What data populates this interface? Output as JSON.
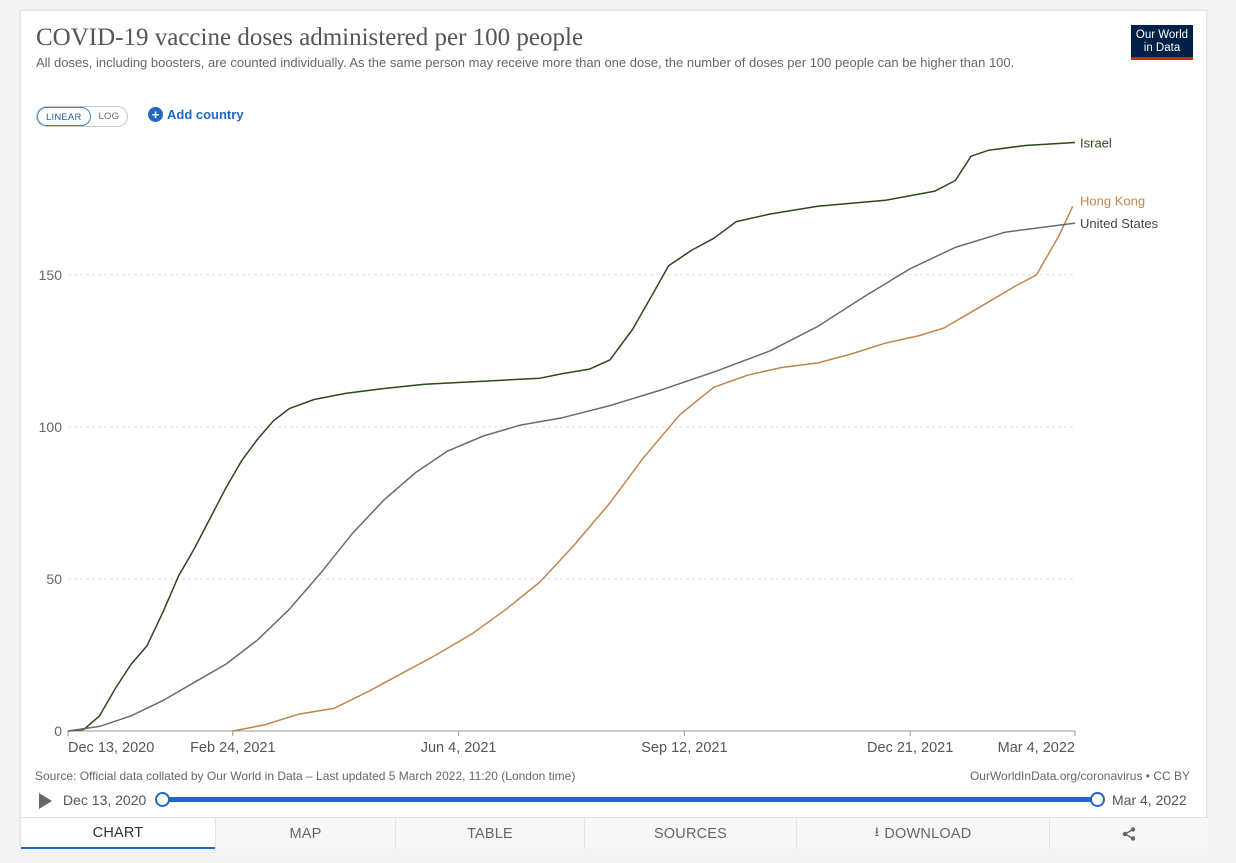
{
  "header": {
    "title": "COVID-19 vaccine doses administered per 100 people",
    "subtitle": "All doses, including boosters, are counted individually. As the same person may receive more than one dose, the number of doses per 100 people can be higher than 100.",
    "logo_line1": "Our World",
    "logo_line2": "in Data"
  },
  "controls": {
    "linear_label": "LINEAR",
    "log_label": "LOG",
    "add_country_label": "Add country",
    "scale_selected": "linear"
  },
  "chart_data": {
    "type": "line",
    "title": "COVID-19 vaccine doses administered per 100 people",
    "ylim": [
      0,
      193
    ],
    "x_tick_labels": [
      "Dec 13, 2020",
      "Feb 24, 2021",
      "Jun 4, 2021",
      "Sep 12, 2021",
      "Dec 21, 2021",
      "Mar 4, 2022"
    ],
    "x_tick_dates": [
      "2020-12-13",
      "2021-02-24",
      "2021-06-04",
      "2021-09-12",
      "2021-12-21",
      "2022-03-04"
    ],
    "x_range": [
      "2020-12-13",
      "2022-03-04"
    ],
    "y_ticks": [
      0,
      50,
      100,
      150
    ],
    "grid": "horizontal dashed",
    "legend": "line end labels",
    "series": [
      {
        "name": "Israel",
        "color": "#2b4a1b",
        "points": [
          [
            "2020-12-13",
            0
          ],
          [
            "2020-12-20",
            0.5
          ],
          [
            "2020-12-27",
            5
          ],
          [
            "2021-01-03",
            14
          ],
          [
            "2021-01-10",
            22
          ],
          [
            "2021-01-17",
            28
          ],
          [
            "2021-01-24",
            39
          ],
          [
            "2021-01-31",
            51
          ],
          [
            "2021-02-07",
            60
          ],
          [
            "2021-02-14",
            70
          ],
          [
            "2021-02-21",
            80
          ],
          [
            "2021-02-28",
            89
          ],
          [
            "2021-03-07",
            96
          ],
          [
            "2021-03-14",
            102
          ],
          [
            "2021-03-21",
            106
          ],
          [
            "2021-04-01",
            109
          ],
          [
            "2021-04-15",
            111
          ],
          [
            "2021-05-01",
            112.5
          ],
          [
            "2021-05-20",
            114
          ],
          [
            "2021-06-15",
            115
          ],
          [
            "2021-07-10",
            116
          ],
          [
            "2021-07-20",
            117.5
          ],
          [
            "2021-08-01",
            119
          ],
          [
            "2021-08-10",
            122
          ],
          [
            "2021-08-20",
            132
          ],
          [
            "2021-08-30",
            145
          ],
          [
            "2021-09-05",
            153
          ],
          [
            "2021-09-15",
            158
          ],
          [
            "2021-09-25",
            162
          ],
          [
            "2021-10-05",
            167.5
          ],
          [
            "2021-10-20",
            170
          ],
          [
            "2021-11-10",
            172.5
          ],
          [
            "2021-12-10",
            174.5
          ],
          [
            "2022-01-01",
            177.5
          ],
          [
            "2022-01-10",
            181
          ],
          [
            "2022-01-17",
            189
          ],
          [
            "2022-01-25",
            191
          ],
          [
            "2022-02-10",
            192.5
          ],
          [
            "2022-03-04",
            193.5
          ]
        ]
      },
      {
        "name": "Hong Kong",
        "color": "#c0854d",
        "points": [
          [
            "2021-02-24",
            0
          ],
          [
            "2021-03-10",
            2
          ],
          [
            "2021-03-25",
            5.5
          ],
          [
            "2021-04-10",
            7.5
          ],
          [
            "2021-04-25",
            13
          ],
          [
            "2021-05-10",
            19
          ],
          [
            "2021-05-25",
            25
          ],
          [
            "2021-06-10",
            32
          ],
          [
            "2021-06-25",
            40
          ],
          [
            "2021-07-10",
            49
          ],
          [
            "2021-07-25",
            61
          ],
          [
            "2021-08-10",
            75
          ],
          [
            "2021-08-25",
            90
          ],
          [
            "2021-09-10",
            104
          ],
          [
            "2021-09-25",
            113
          ],
          [
            "2021-10-10",
            117
          ],
          [
            "2021-10-25",
            119.5
          ],
          [
            "2021-11-10",
            121
          ],
          [
            "2021-11-25",
            124
          ],
          [
            "2021-12-10",
            127.5
          ],
          [
            "2021-12-25",
            130
          ],
          [
            "2022-01-05",
            132.5
          ],
          [
            "2022-01-20",
            139
          ],
          [
            "2022-02-05",
            146
          ],
          [
            "2022-02-15",
            150
          ],
          [
            "2022-02-25",
            163
          ],
          [
            "2022-03-03",
            172.5
          ]
        ]
      },
      {
        "name": "United States",
        "color": "#6b6b6b",
        "points": [
          [
            "2020-12-13",
            0
          ],
          [
            "2020-12-27",
            1.5
          ],
          [
            "2021-01-10",
            5
          ],
          [
            "2021-01-24",
            10
          ],
          [
            "2021-02-07",
            16
          ],
          [
            "2021-02-21",
            22
          ],
          [
            "2021-03-07",
            30
          ],
          [
            "2021-03-21",
            40
          ],
          [
            "2021-04-04",
            52
          ],
          [
            "2021-04-18",
            65
          ],
          [
            "2021-05-02",
            76
          ],
          [
            "2021-05-16",
            85
          ],
          [
            "2021-05-30",
            92
          ],
          [
            "2021-06-15",
            97
          ],
          [
            "2021-07-01",
            100.5
          ],
          [
            "2021-07-20",
            103
          ],
          [
            "2021-08-10",
            107
          ],
          [
            "2021-09-01",
            112
          ],
          [
            "2021-09-25",
            118
          ],
          [
            "2021-10-20",
            125
          ],
          [
            "2021-11-10",
            133
          ],
          [
            "2021-12-01",
            143
          ],
          [
            "2021-12-21",
            152
          ],
          [
            "2022-01-10",
            159
          ],
          [
            "2022-02-01",
            164
          ],
          [
            "2022-03-04",
            167
          ]
        ]
      }
    ]
  },
  "footer": {
    "source": "Source: Official data collated by Our World in Data – Last updated 5 March 2022, 11:20 (London time)",
    "source_right": "OurWorldInData.org/coronavirus • CC BY",
    "timeline_start": "Dec 13, 2020",
    "timeline_end": "Mar 4, 2022",
    "timeline_start_pos": 0,
    "timeline_end_pos": 1
  },
  "tabs": [
    {
      "label": "CHART",
      "active": true
    },
    {
      "label": "MAP",
      "active": false
    },
    {
      "label": "TABLE",
      "active": false
    },
    {
      "label": "SOURCES",
      "active": false
    },
    {
      "label": "DOWNLOAD",
      "active": false
    },
    {
      "label": "",
      "active": false
    }
  ],
  "icons": {
    "share": "share-icon",
    "download": "download-icon",
    "play": "play-icon",
    "add": "plus-icon"
  }
}
